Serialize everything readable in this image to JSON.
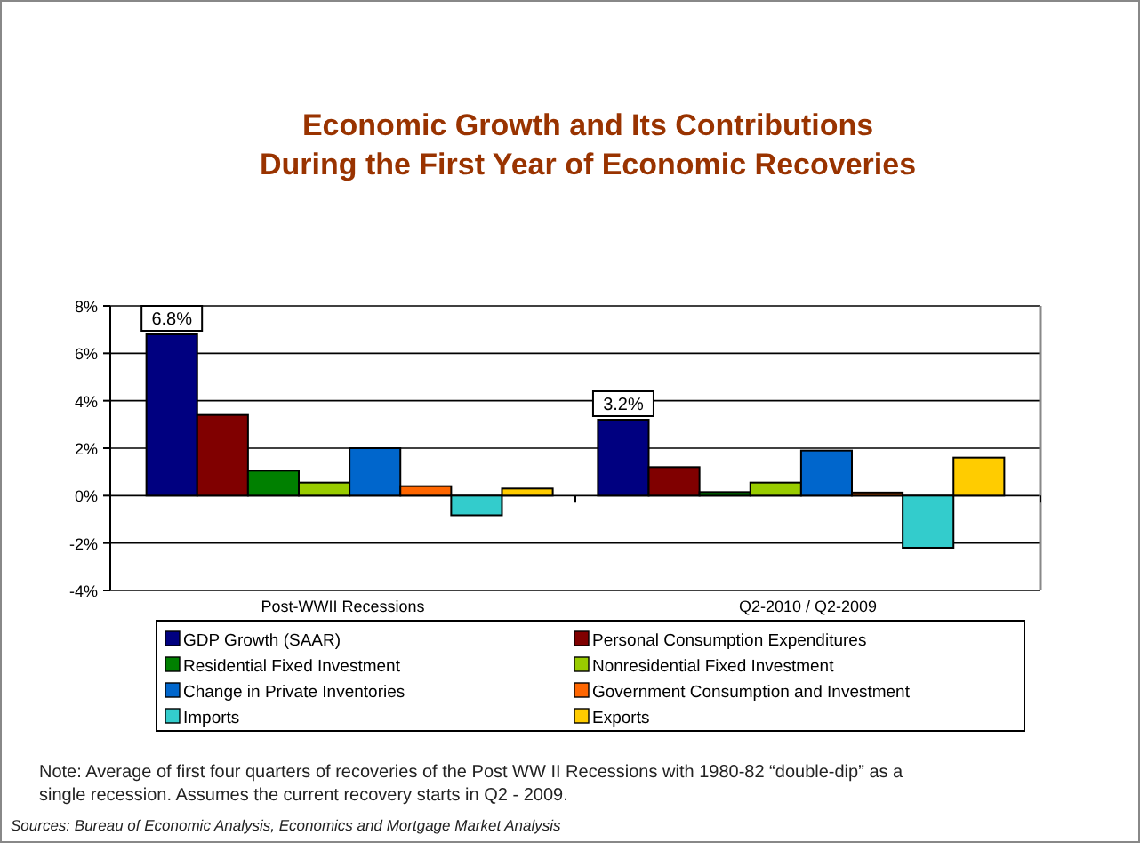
{
  "chart_data": {
    "type": "bar",
    "title": "Economic Growth and Its Contributions\nDuring the First Year of Economic Recoveries",
    "categories": [
      "Post-WWII Recessions",
      "Q2-2010 / Q2-2009"
    ],
    "series": [
      {
        "name": "GDP Growth (SAAR)",
        "color": "#000080",
        "values": [
          6.8,
          3.2
        ],
        "value_labels": [
          "6.8%",
          "3.2%"
        ]
      },
      {
        "name": "Personal Consumption Expenditures",
        "color": "#800000",
        "values": [
          3.4,
          1.2
        ]
      },
      {
        "name": "Residential Fixed Investment",
        "color": "#008000",
        "values": [
          1.05,
          0.15
        ]
      },
      {
        "name": "Nonresidential Fixed Investment",
        "color": "#99cc00",
        "values": [
          0.55,
          0.55
        ]
      },
      {
        "name": "Change in Private Inventories",
        "color": "#0066cc",
        "values": [
          2.0,
          1.9
        ]
      },
      {
        "name": "Government Consumption and Investment",
        "color": "#ff6600",
        "values": [
          0.4,
          0.13
        ]
      },
      {
        "name": "Imports",
        "color": "#33cccc",
        "values": [
          -0.83,
          -2.2
        ]
      },
      {
        "name": "Exports",
        "color": "#ffcc00",
        "values": [
          0.3,
          1.6
        ]
      }
    ],
    "ylim": [
      -4,
      8
    ],
    "yticks": [
      {
        "value": -4,
        "label": "-4%"
      },
      {
        "value": -2,
        "label": "-2%"
      },
      {
        "value": 0,
        "label": "0%"
      },
      {
        "value": 2,
        "label": "2%"
      },
      {
        "value": 4,
        "label": "4%"
      },
      {
        "value": 6,
        "label": "6%"
      },
      {
        "value": 8,
        "label": "8%"
      }
    ],
    "grid": "y",
    "legend": "bottom",
    "annotations": [
      "Note: Average of first four quarters of recoveries of the Post WW II Recessions with 1980-82 “double-dip” as a single recession. Assumes the current recovery starts in Q2 - 2009.",
      "Sources: Bureau of Economic Analysis, Economics and Mortgage Market Analysis"
    ]
  }
}
